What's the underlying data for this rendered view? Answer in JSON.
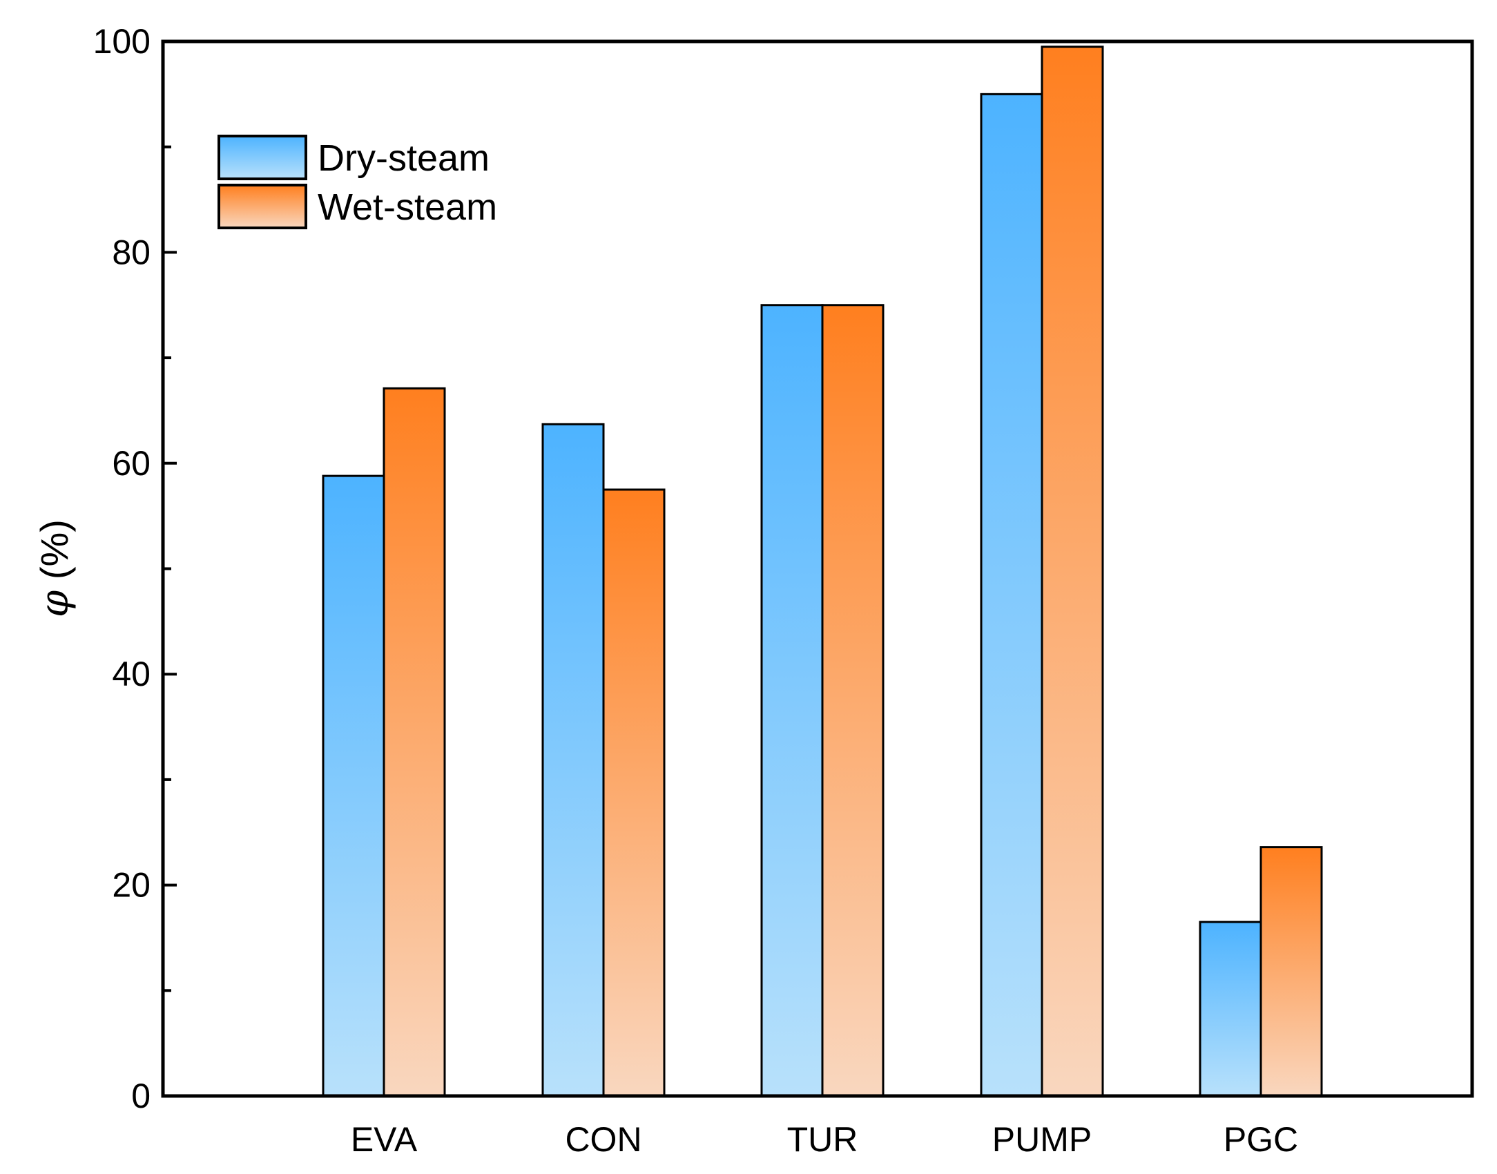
{
  "chart_data": {
    "type": "bar",
    "title": "",
    "xlabel": "",
    "ylabel_symbol": "φ",
    "ylabel_unit": "(%)",
    "ylim": [
      0,
      100
    ],
    "yticks": [
      0,
      20,
      40,
      60,
      80,
      100
    ],
    "yticks_minor": [
      10,
      30,
      50,
      70,
      90
    ],
    "categories": [
      "EVA",
      "CON",
      "TUR",
      "PUMP",
      "PGC"
    ],
    "series": [
      {
        "name": "Dry-steam",
        "values": [
          58.8,
          63.7,
          75.0,
          95.0,
          16.5
        ],
        "color_top": "#4db3ff",
        "color_bottom": "#b8e1fb"
      },
      {
        "name": "Wet-steam",
        "values": [
          67.1,
          57.5,
          75.0,
          99.5,
          23.6
        ],
        "color_top": "#ff7f1f",
        "color_bottom": "#f9d7bf"
      }
    ],
    "legend_position": "top-left",
    "grid": false
  }
}
